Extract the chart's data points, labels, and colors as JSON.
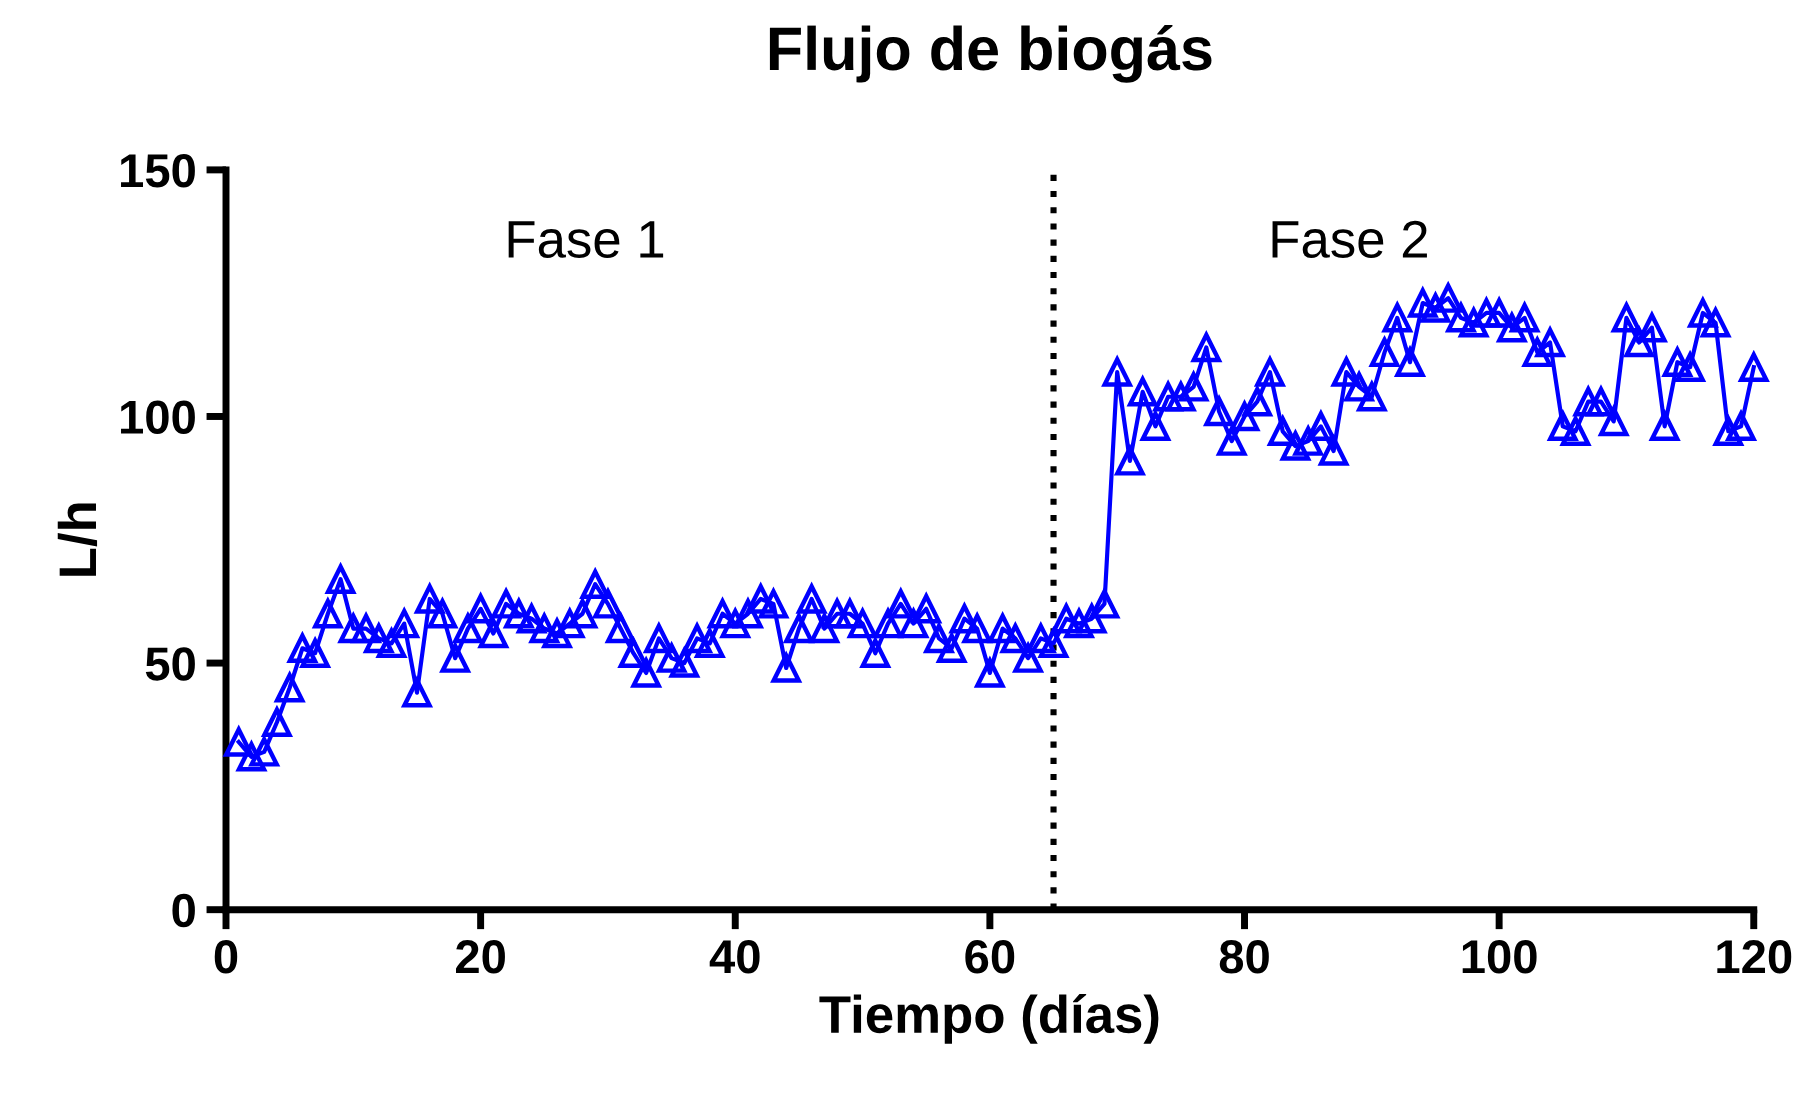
{
  "chart_data": {
    "type": "line",
    "title": "Flujo de biogás",
    "xlabel": "Tiempo (días)",
    "ylabel": "L/h",
    "annotations": [
      "Fase 1",
      "Fase 2"
    ],
    "x": [
      1,
      2,
      3,
      4,
      5,
      6,
      7,
      8,
      9,
      10,
      11,
      12,
      13,
      14,
      15,
      16,
      17,
      18,
      19,
      20,
      21,
      22,
      23,
      24,
      25,
      26,
      27,
      28,
      29,
      30,
      31,
      32,
      33,
      34,
      35,
      36,
      37,
      38,
      39,
      40,
      41,
      42,
      43,
      44,
      45,
      46,
      47,
      48,
      49,
      50,
      51,
      52,
      53,
      54,
      55,
      56,
      57,
      58,
      59,
      60,
      61,
      62,
      63,
      64,
      65,
      66,
      67,
      68,
      69,
      70,
      71,
      72,
      73,
      74,
      75,
      76,
      77,
      78,
      79,
      80,
      81,
      82,
      83,
      84,
      85,
      86,
      87,
      88,
      89,
      90,
      91,
      92,
      93,
      94,
      95,
      96,
      97,
      98,
      99,
      100,
      101,
      102,
      103,
      104,
      105,
      106,
      107,
      108,
      109,
      110,
      111,
      112,
      113,
      114,
      115,
      116,
      117,
      118,
      119,
      120
    ],
    "series": [
      {
        "color": "#0000ff",
        "values": [
          34,
          31,
          32,
          38,
          45,
          53,
          52,
          60,
          67,
          57,
          57,
          55,
          54,
          58,
          44,
          63,
          60,
          51,
          57,
          61,
          56,
          62,
          60,
          59,
          57,
          56,
          58,
          60,
          66,
          62,
          57,
          52,
          48,
          55,
          51,
          50,
          55,
          54,
          60,
          58,
          60,
          63,
          62,
          49,
          57,
          63,
          57,
          60,
          60,
          58,
          52,
          58,
          62,
          58,
          61,
          55,
          53,
          59,
          57,
          48,
          57,
          55,
          51,
          55,
          54,
          59,
          58,
          59,
          62,
          109,
          91,
          105,
          98,
          104,
          104,
          106,
          114,
          101,
          95,
          100,
          103,
          109,
          97,
          94,
          95,
          98,
          93,
          109,
          106,
          104,
          113,
          120,
          111,
          123,
          122,
          124,
          120,
          119,
          121,
          121,
          118,
          120,
          113,
          115,
          98,
          97,
          103,
          103,
          99,
          120,
          115,
          118,
          98,
          111,
          110,
          121,
          119,
          97,
          98,
          110
        ]
      }
    ],
    "xlim": [
      0,
      120
    ],
    "xticks": [
      0,
      20,
      40,
      60,
      80,
      100,
      120
    ],
    "ylim": [
      0,
      150
    ],
    "yticks": [
      0,
      50,
      100,
      150
    ],
    "ref_lines": [
      {
        "axis": "x",
        "value": 65,
        "color": "#000000",
        "line_style": "dotted"
      }
    ],
    "marker": "triangle",
    "line_style": "solid",
    "grid": false
  }
}
